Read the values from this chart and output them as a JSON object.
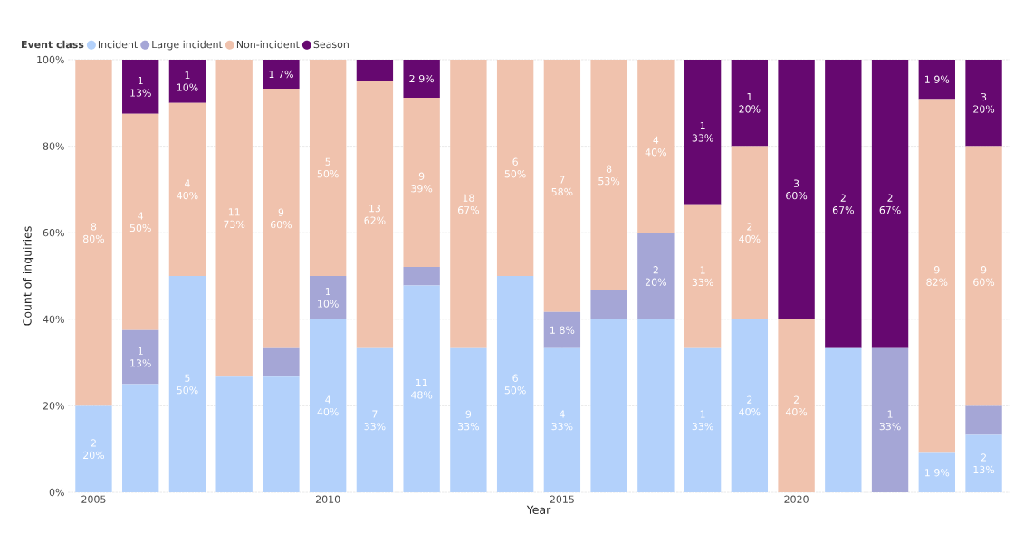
{
  "chart_data": {
    "type": "bar",
    "stacked": true,
    "xlabel": "Year",
    "ylabel": "Count of inquiries",
    "legend_title": "Event class",
    "legend": "top left",
    "grid": true,
    "categories": [
      "2005",
      null,
      null,
      null,
      null,
      "2010",
      null,
      null,
      null,
      null,
      "2015",
      null,
      null,
      null,
      null,
      "2020",
      null,
      null,
      null,
      null
    ],
    "ylim": [
      0,
      100
    ],
    "yticks": [
      {
        "value": 0,
        "label": "0%"
      },
      {
        "value": 20,
        "label": "20%"
      },
      {
        "value": 40,
        "label": "40%"
      },
      {
        "value": 60,
        "label": "60%"
      },
      {
        "value": 80,
        "label": "80%"
      },
      {
        "value": 100,
        "label": "100%"
      }
    ],
    "series": [
      {
        "name": "Incident",
        "color": "#b3d1fb",
        "values": [
          20,
          25,
          50,
          26.7,
          26.7,
          40,
          33.3,
          47.8,
          33.3,
          50,
          33.3,
          40,
          40,
          33.3,
          40,
          null,
          33.3,
          null,
          9.1,
          13.3
        ],
        "value_labels": [
          "2 20%",
          null,
          "5 50%",
          null,
          null,
          "4 40%",
          "7 33%",
          "11 48%",
          "9 33%",
          "6 50%",
          "4 33%",
          null,
          null,
          "1 33%",
          "2 40%",
          null,
          null,
          null,
          "1 9%",
          "2 13%"
        ]
      },
      {
        "name": "Large incident",
        "color": "#a5a6d6",
        "values": [
          null,
          12.5,
          null,
          null,
          6.6,
          10,
          null,
          4.3,
          null,
          null,
          8.4,
          6.7,
          20,
          null,
          null,
          null,
          null,
          33.3,
          null,
          6.7
        ],
        "value_labels": [
          null,
          "1 13%",
          null,
          null,
          null,
          "1 10%",
          null,
          null,
          null,
          null,
          "1 8%",
          null,
          "2 20%",
          null,
          null,
          null,
          null,
          "1 33%",
          null,
          null
        ]
      },
      {
        "name": "Non-incident",
        "color": "#f0c2ad",
        "values": [
          80,
          50,
          40,
          73.3,
          60,
          50,
          61.9,
          39.1,
          66.7,
          50,
          58.3,
          53.3,
          40,
          33.3,
          40,
          40,
          null,
          null,
          81.8,
          60
        ],
        "value_labels": [
          "8 80%",
          "4 50%",
          "4 40%",
          "11 73%",
          "9 60%",
          "5 50%",
          "13 62%",
          "9 39%",
          "18 67%",
          "6 50%",
          "7 58%",
          "8 53%",
          "4 40%",
          "1 33%",
          "2 40%",
          "2 40%",
          null,
          null,
          "9 82%",
          "9 60%"
        ]
      },
      {
        "name": "Season",
        "color": "#660870",
        "values": [
          null,
          12.5,
          10,
          null,
          6.7,
          null,
          4.8,
          8.8,
          null,
          null,
          null,
          null,
          null,
          33.4,
          20,
          60,
          66.7,
          66.7,
          9.1,
          20
        ],
        "value_labels": [
          null,
          "1 13%",
          "1 10%",
          null,
          "1 7%",
          null,
          null,
          "2 9%",
          null,
          null,
          null,
          null,
          null,
          "1 33%",
          "1 20%",
          "3 60%",
          "2 67%",
          "2 67%",
          "1 9%",
          "3 20%"
        ]
      }
    ]
  }
}
